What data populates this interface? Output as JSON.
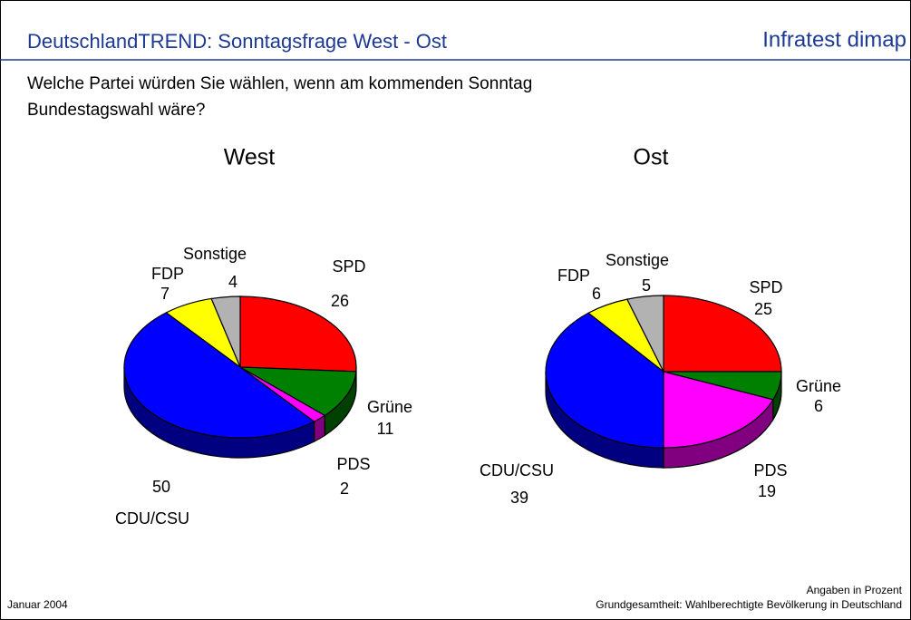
{
  "header": {
    "title": "DeutschlandTREND: Sonntagsfrage West - Ost",
    "brand": "Infratest dimap"
  },
  "question": [
    "Welche Partei würden Sie wählen, wenn am kommenden Sonntag",
    "Bundestagswahl wäre?"
  ],
  "chart_data": [
    {
      "type": "pie",
      "title": "West",
      "categories": [
        "SPD",
        "Grüne",
        "PDS",
        "CDU/CSU",
        "FDP",
        "Sonstige"
      ],
      "values": [
        26,
        11,
        2,
        50,
        7,
        4
      ],
      "colors": [
        "#ff0000",
        "#008000",
        "#ff00ff",
        "#0000ff",
        "#ffff00",
        "#b2b2b2"
      ]
    },
    {
      "type": "pie",
      "title": "Ost",
      "categories": [
        "SPD",
        "Grüne",
        "PDS",
        "CDU/CSU",
        "FDP",
        "Sonstige"
      ],
      "values": [
        25,
        6,
        19,
        39,
        6,
        5
      ],
      "colors": [
        "#ff0000",
        "#008000",
        "#ff00ff",
        "#0000ff",
        "#ffff00",
        "#b2b2b2"
      ]
    }
  ],
  "footer": {
    "date": "Januar 2004",
    "note": "Angaben in Prozent",
    "basis": "Grundgesamtheit: Wahlberechtigte Bevölkerung in Deutschland"
  }
}
